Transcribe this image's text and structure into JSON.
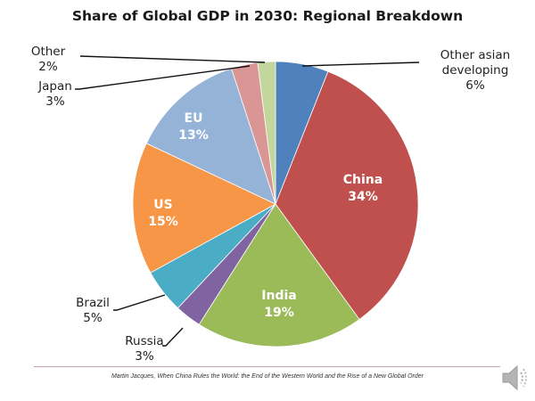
{
  "chart_data": {
    "type": "pie",
    "title": "Share of Global GDP in 2030: Regional Breakdown",
    "start": "top",
    "direction": "clockwise",
    "slices": [
      {
        "name": "Other asian developing",
        "lines": [
          "Other asian",
          "developing",
          "6%"
        ],
        "value": 6,
        "label": "6%",
        "color": "#4F81BD",
        "label_position": "outside"
      },
      {
        "name": "China",
        "lines": [
          "China",
          "34%"
        ],
        "value": 34,
        "label": "34%",
        "color": "#C0504D",
        "label_position": "inside"
      },
      {
        "name": "India",
        "lines": [
          "India",
          "19%"
        ],
        "value": 19,
        "label": "19%",
        "color": "#9BBB59",
        "label_position": "inside"
      },
      {
        "name": "Russia",
        "lines": [
          "Russia",
          "3%"
        ],
        "value": 3,
        "label": "3%",
        "color": "#8064A2",
        "label_position": "outside"
      },
      {
        "name": "Brazil",
        "lines": [
          "Brazil",
          "5%"
        ],
        "value": 5,
        "label": "5%",
        "color": "#4BACC6",
        "label_position": "outside"
      },
      {
        "name": "US",
        "lines": [
          "US",
          "15%"
        ],
        "value": 15,
        "label": "15%",
        "color": "#F79646",
        "label_position": "inside"
      },
      {
        "name": "EU",
        "lines": [
          "EU",
          "13%"
        ],
        "value": 13,
        "label": "13%",
        "color": "#95B3D7",
        "label_position": "inside"
      },
      {
        "name": "Japan",
        "lines": [
          "Japan",
          "3%"
        ],
        "value": 3,
        "label": "3%",
        "color": "#D99694",
        "label_position": "outside"
      },
      {
        "name": "Other",
        "lines": [
          "Other",
          "2%"
        ],
        "value": 2,
        "label": "2%",
        "color": "#C3D69B",
        "label_position": "outside"
      }
    ]
  },
  "footer": {
    "source": "Martin Jacques, When China Rules the World: the End of the Western World and the Rise of a New Global Order"
  },
  "controls": {
    "audio_icon": "speaker-icon"
  }
}
